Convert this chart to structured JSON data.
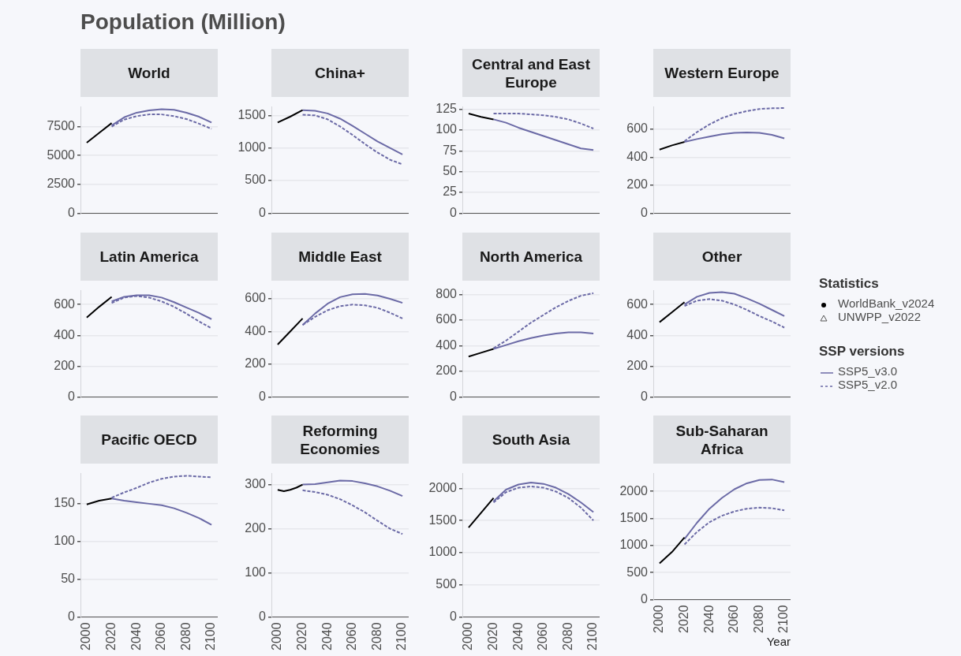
{
  "chart_data": [
    {
      "type": "other",
      "title": "Population (Million)"
    },
    {
      "type": "line",
      "title": "World",
      "xlim": [
        1995,
        2105
      ],
      "xticks": [
        2000,
        2020,
        2040,
        2060,
        2080,
        2100
      ],
      "ylim": [
        0,
        9200
      ],
      "yticks": [
        0,
        2500,
        5000,
        7500
      ],
      "grid": "y",
      "tick_labels": "y",
      "series": [
        {
          "color": "#000000",
          "line_style": "solid",
          "x": [
            2000,
            2010,
            2020
          ],
          "values": [
            6100,
            6950,
            7800
          ]
        },
        {
          "color": "#6b6aa6",
          "line_style": "solid",
          "x": [
            2020,
            2030,
            2040,
            2050,
            2060,
            2070,
            2080,
            2090,
            2100
          ],
          "values": [
            7600,
            8300,
            8700,
            8900,
            9000,
            8950,
            8700,
            8350,
            7850
          ]
        },
        {
          "color": "#6b6aa6",
          "line_style": "dashed",
          "x": [
            2020,
            2030,
            2040,
            2050,
            2060,
            2070,
            2080,
            2090,
            2100
          ],
          "values": [
            7500,
            8100,
            8400,
            8550,
            8550,
            8400,
            8150,
            7750,
            7300
          ]
        }
      ]
    },
    {
      "type": "line",
      "title": "China+",
      "xlim": [
        1995,
        2105
      ],
      "xticks": [
        2000,
        2020,
        2040,
        2060,
        2080,
        2100
      ],
      "ylim": [
        0,
        1630
      ],
      "yticks": [
        0,
        500,
        1000,
        1500
      ],
      "grid": "y",
      "tick_labels": "y",
      "series": [
        {
          "color": "#000000",
          "line_style": "solid",
          "x": [
            2000,
            2010,
            2020
          ],
          "values": [
            1390,
            1480,
            1580
          ]
        },
        {
          "color": "#6b6aa6",
          "line_style": "solid",
          "x": [
            2020,
            2030,
            2040,
            2050,
            2060,
            2070,
            2080,
            2090,
            2100
          ],
          "values": [
            1580,
            1570,
            1530,
            1450,
            1340,
            1220,
            1100,
            1000,
            900
          ]
        },
        {
          "color": "#6b6aa6",
          "line_style": "dashed",
          "x": [
            2020,
            2030,
            2040,
            2050,
            2060,
            2070,
            2080,
            2090,
            2100
          ],
          "values": [
            1510,
            1500,
            1440,
            1330,
            1200,
            1060,
            930,
            820,
            750
          ]
        }
      ]
    },
    {
      "type": "line",
      "title": "Central and East Europe",
      "xlim": [
        1995,
        2105
      ],
      "xticks": [
        2000,
        2020,
        2040,
        2060,
        2080,
        2100
      ],
      "ylim": [
        0,
        128
      ],
      "yticks": [
        0,
        25,
        50,
        75,
        100,
        125
      ],
      "grid": "y",
      "tick_labels": "y",
      "series": [
        {
          "color": "#000000",
          "line_style": "solid",
          "x": [
            2000,
            2010,
            2020
          ],
          "values": [
            120,
            116,
            113
          ]
        },
        {
          "color": "#6b6aa6",
          "line_style": "solid",
          "x": [
            2020,
            2030,
            2040,
            2050,
            2060,
            2070,
            2080,
            2090,
            2100
          ],
          "values": [
            113,
            109,
            103,
            98,
            93,
            88,
            83,
            78,
            76
          ]
        },
        {
          "color": "#6b6aa6",
          "line_style": "dashed",
          "x": [
            2020,
            2030,
            2040,
            2050,
            2060,
            2070,
            2080,
            2090,
            2100
          ],
          "values": [
            120,
            120,
            120,
            119,
            118,
            116,
            113,
            108,
            102
          ]
        }
      ]
    },
    {
      "type": "line",
      "title": "Western Europe",
      "xlim": [
        1995,
        2105
      ],
      "xticks": [
        2000,
        2020,
        2040,
        2060,
        2080,
        2100
      ],
      "ylim": [
        0,
        760
      ],
      "yticks": [
        0,
        200,
        400,
        600
      ],
      "grid": "y",
      "tick_labels": "y",
      "series": [
        {
          "color": "#000000",
          "line_style": "solid",
          "x": [
            2000,
            2010,
            2020
          ],
          "values": [
            455,
            485,
            510
          ]
        },
        {
          "color": "#6b6aa6",
          "line_style": "solid",
          "x": [
            2020,
            2030,
            2040,
            2050,
            2060,
            2070,
            2080,
            2090,
            2100
          ],
          "values": [
            510,
            530,
            548,
            565,
            575,
            578,
            575,
            560,
            535
          ]
        },
        {
          "color": "#6b6aa6",
          "line_style": "dashed",
          "x": [
            2020,
            2030,
            2040,
            2050,
            2060,
            2070,
            2080,
            2090,
            2100
          ],
          "values": [
            515,
            580,
            635,
            680,
            710,
            730,
            745,
            750,
            752
          ]
        }
      ]
    },
    {
      "type": "line",
      "title": "Latin America",
      "xlim": [
        1995,
        2105
      ],
      "xticks": [
        2000,
        2020,
        2040,
        2060,
        2080,
        2100
      ],
      "ylim": [
        0,
        690
      ],
      "yticks": [
        0,
        200,
        400,
        600
      ],
      "grid": "y",
      "tick_labels": "y",
      "series": [
        {
          "color": "#000000",
          "line_style": "solid",
          "x": [
            2000,
            2010,
            2020
          ],
          "values": [
            515,
            585,
            650
          ]
        },
        {
          "color": "#6b6aa6",
          "line_style": "solid",
          "x": [
            2020,
            2030,
            2040,
            2050,
            2060,
            2070,
            2080,
            2090,
            2100
          ],
          "values": [
            620,
            650,
            660,
            660,
            645,
            615,
            580,
            545,
            505
          ]
        },
        {
          "color": "#6b6aa6",
          "line_style": "dashed",
          "x": [
            2020,
            2030,
            2040,
            2050,
            2060,
            2070,
            2080,
            2090,
            2100
          ],
          "values": [
            610,
            645,
            655,
            645,
            620,
            585,
            540,
            490,
            445
          ]
        }
      ]
    },
    {
      "type": "line",
      "title": "Middle East",
      "xlim": [
        1995,
        2105
      ],
      "xticks": [
        2000,
        2020,
        2040,
        2060,
        2080,
        2100
      ],
      "ylim": [
        0,
        650
      ],
      "yticks": [
        0,
        200,
        400,
        600
      ],
      "grid": "y",
      "tick_labels": "y",
      "series": [
        {
          "color": "#000000",
          "line_style": "solid",
          "x": [
            2000,
            2010,
            2020
          ],
          "values": [
            320,
            400,
            480
          ]
        },
        {
          "color": "#6b6aa6",
          "line_style": "solid",
          "x": [
            2020,
            2030,
            2040,
            2050,
            2060,
            2070,
            2080,
            2090,
            2100
          ],
          "values": [
            440,
            510,
            570,
            610,
            628,
            630,
            620,
            600,
            575
          ]
        },
        {
          "color": "#6b6aa6",
          "line_style": "dashed",
          "x": [
            2020,
            2030,
            2040,
            2050,
            2060,
            2070,
            2080,
            2090,
            2100
          ],
          "values": [
            440,
            490,
            530,
            555,
            565,
            560,
            545,
            515,
            480
          ]
        }
      ]
    },
    {
      "type": "line",
      "title": "North America",
      "xlim": [
        1995,
        2105
      ],
      "xticks": [
        2000,
        2020,
        2040,
        2060,
        2080,
        2100
      ],
      "ylim": [
        0,
        830
      ],
      "yticks": [
        0,
        200,
        400,
        600,
        800
      ],
      "grid": "y",
      "tick_labels": "y",
      "series": [
        {
          "color": "#000000",
          "line_style": "solid",
          "x": [
            2000,
            2010,
            2020
          ],
          "values": [
            315,
            345,
            375
          ]
        },
        {
          "color": "#6b6aa6",
          "line_style": "solid",
          "x": [
            2020,
            2030,
            2040,
            2050,
            2060,
            2070,
            2080,
            2090,
            2100
          ],
          "values": [
            375,
            405,
            435,
            460,
            480,
            495,
            505,
            505,
            495
          ]
        },
        {
          "color": "#6b6aa6",
          "line_style": "dashed",
          "x": [
            2020,
            2030,
            2040,
            2050,
            2060,
            2070,
            2080,
            2090,
            2100
          ],
          "values": [
            380,
            440,
            510,
            580,
            640,
            700,
            750,
            790,
            810
          ]
        }
      ]
    },
    {
      "type": "line",
      "title": "Other",
      "xlim": [
        1995,
        2105
      ],
      "xticks": [
        2000,
        2020,
        2040,
        2060,
        2080,
        2100
      ],
      "ylim": [
        0,
        690
      ],
      "yticks": [
        0,
        200,
        400,
        600
      ],
      "grid": "y",
      "tick_labels": "y",
      "series": [
        {
          "color": "#000000",
          "line_style": "solid",
          "x": [
            2000,
            2010,
            2020
          ],
          "values": [
            485,
            550,
            615
          ]
        },
        {
          "color": "#6b6aa6",
          "line_style": "solid",
          "x": [
            2020,
            2030,
            2040,
            2050,
            2060,
            2070,
            2080,
            2090,
            2100
          ],
          "values": [
            600,
            650,
            675,
            680,
            670,
            640,
            605,
            565,
            525
          ]
        },
        {
          "color": "#6b6aa6",
          "line_style": "dashed",
          "x": [
            2020,
            2030,
            2040,
            2050,
            2060,
            2070,
            2080,
            2090,
            2100
          ],
          "values": [
            590,
            625,
            635,
            625,
            600,
            565,
            525,
            490,
            450
          ]
        }
      ]
    },
    {
      "type": "line",
      "title": "Pacific OECD",
      "xlim": [
        1995,
        2105
      ],
      "xticks": [
        2000,
        2020,
        2040,
        2060,
        2080,
        2100
      ],
      "ylim": [
        0,
        190
      ],
      "yticks": [
        0,
        50,
        100,
        150
      ],
      "grid": "y",
      "series": [
        {
          "color": "#000000",
          "line_style": "solid",
          "x": [
            2000,
            2010,
            2020
          ],
          "values": [
            149,
            154,
            157
          ]
        },
        {
          "color": "#6b6aa6",
          "line_style": "solid",
          "x": [
            2020,
            2030,
            2040,
            2050,
            2060,
            2070,
            2080,
            2090,
            2100
          ],
          "values": [
            157,
            154,
            152,
            150,
            148,
            144,
            138,
            131,
            122
          ]
        },
        {
          "color": "#6b6aa6",
          "line_style": "dashed",
          "x": [
            2020,
            2030,
            2040,
            2050,
            2060,
            2070,
            2080,
            2090,
            2100
          ],
          "values": [
            158,
            165,
            171,
            178,
            183,
            186,
            187,
            186,
            185
          ]
        }
      ]
    },
    {
      "type": "line",
      "title": "Reforming Economies",
      "xlim": [
        1995,
        2105
      ],
      "xticks": [
        2000,
        2020,
        2040,
        2060,
        2080,
        2100
      ],
      "ylim": [
        0,
        325
      ],
      "yticks": [
        0,
        100,
        200,
        300
      ],
      "grid": "y",
      "series": [
        {
          "color": "#000000",
          "line_style": "solid",
          "x": [
            2000,
            2005,
            2010,
            2015,
            2020
          ],
          "values": [
            288,
            285,
            288,
            293,
            300
          ]
        },
        {
          "color": "#6b6aa6",
          "line_style": "solid",
          "x": [
            2020,
            2030,
            2040,
            2050,
            2060,
            2070,
            2080,
            2090,
            2100
          ],
          "values": [
            300,
            301,
            305,
            309,
            308,
            303,
            296,
            286,
            274
          ]
        },
        {
          "color": "#6b6aa6",
          "line_style": "dashed",
          "x": [
            2020,
            2030,
            2040,
            2050,
            2060,
            2070,
            2080,
            2090,
            2100
          ],
          "values": [
            287,
            283,
            277,
            267,
            253,
            237,
            218,
            200,
            188
          ]
        }
      ]
    },
    {
      "type": "line",
      "title": "South Asia",
      "xlim": [
        1995,
        2105
      ],
      "xticks": [
        2000,
        2020,
        2040,
        2060,
        2080,
        2100
      ],
      "ylim": [
        0,
        2230
      ],
      "yticks": [
        0,
        500,
        1000,
        1500,
        2000
      ],
      "grid": "y",
      "series": [
        {
          "color": "#000000",
          "line_style": "solid",
          "x": [
            2000,
            2010,
            2020
          ],
          "values": [
            1390,
            1620,
            1850
          ]
        },
        {
          "color": "#6b6aa6",
          "line_style": "solid",
          "x": [
            2020,
            2030,
            2040,
            2050,
            2060,
            2070,
            2080,
            2090,
            2100
          ],
          "values": [
            1800,
            1980,
            2060,
            2090,
            2070,
            2010,
            1910,
            1780,
            1630
          ]
        },
        {
          "color": "#6b6aa6",
          "line_style": "dashed",
          "x": [
            2020,
            2030,
            2040,
            2050,
            2060,
            2070,
            2080,
            2090,
            2100
          ],
          "values": [
            1780,
            1940,
            2010,
            2030,
            2010,
            1950,
            1850,
            1700,
            1500
          ]
        }
      ]
    },
    {
      "type": "line",
      "title": "Sub-Saharan Africa",
      "xlabel": "Year",
      "xlim": [
        1995,
        2105
      ],
      "xticks": [
        2000,
        2020,
        2040,
        2060,
        2080,
        2100
      ],
      "ylim": [
        0,
        2330
      ],
      "yticks": [
        0,
        500,
        1000,
        1500,
        2000
      ],
      "grid": "y",
      "series": [
        {
          "color": "#000000",
          "line_style": "solid",
          "x": [
            2000,
            2010,
            2020
          ],
          "values": [
            670,
            880,
            1150
          ]
        },
        {
          "color": "#6b6aa6",
          "line_style": "solid",
          "x": [
            2020,
            2030,
            2040,
            2050,
            2060,
            2070,
            2080,
            2090,
            2100
          ],
          "values": [
            1120,
            1420,
            1680,
            1880,
            2040,
            2150,
            2210,
            2220,
            2170
          ]
        },
        {
          "color": "#6b6aa6",
          "line_style": "dashed",
          "x": [
            2020,
            2030,
            2040,
            2050,
            2060,
            2070,
            2080,
            2090,
            2100
          ],
          "values": [
            1020,
            1250,
            1430,
            1550,
            1630,
            1680,
            1700,
            1690,
            1650
          ]
        }
      ]
    },
    {
      "type": "other",
      "annotations": [
        "Statistics",
        "WorldBank_v2024",
        "UNWPP_v2022",
        "SSP versions",
        "SSP5_v3.0",
        "SSP5_v2.0"
      ]
    }
  ]
}
